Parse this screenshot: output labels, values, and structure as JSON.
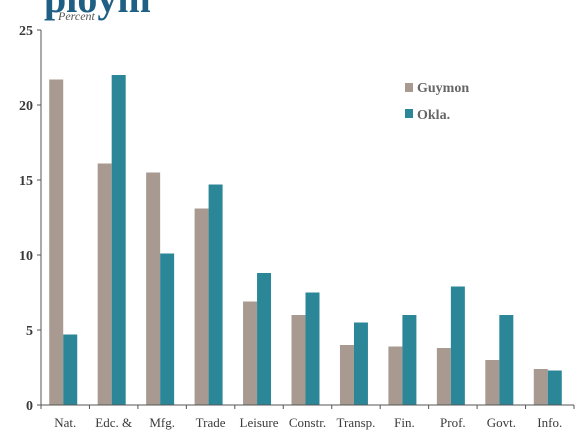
{
  "colors": {
    "guymon": "#a89a90",
    "okla": "#2b8797",
    "axis": "#555555",
    "title": "#1f5f84"
  },
  "chart_data": {
    "type": "bar",
    "title_fragment": "ploym",
    "ylabel": "Percent",
    "ylim": [
      0,
      25
    ],
    "yticks": [
      0,
      5,
      10,
      15,
      20,
      25
    ],
    "categories": [
      "Nat.",
      "Edc. &",
      "Mfg.",
      "Trade",
      "Leisure",
      "Constr.",
      "Transp.",
      "Fin.",
      "Prof.",
      "Govt.",
      "Info."
    ],
    "series": [
      {
        "name": "Guymon",
        "values": [
          21.7,
          16.1,
          15.5,
          13.1,
          6.9,
          6.0,
          4.0,
          3.9,
          3.8,
          3.0,
          2.4
        ]
      },
      {
        "name": "Okla.",
        "values": [
          4.7,
          22.0,
          10.1,
          14.7,
          8.8,
          7.5,
          5.5,
          6.0,
          7.9,
          6.0,
          2.3
        ]
      }
    ],
    "grid": false,
    "legend_position": "top-right"
  }
}
